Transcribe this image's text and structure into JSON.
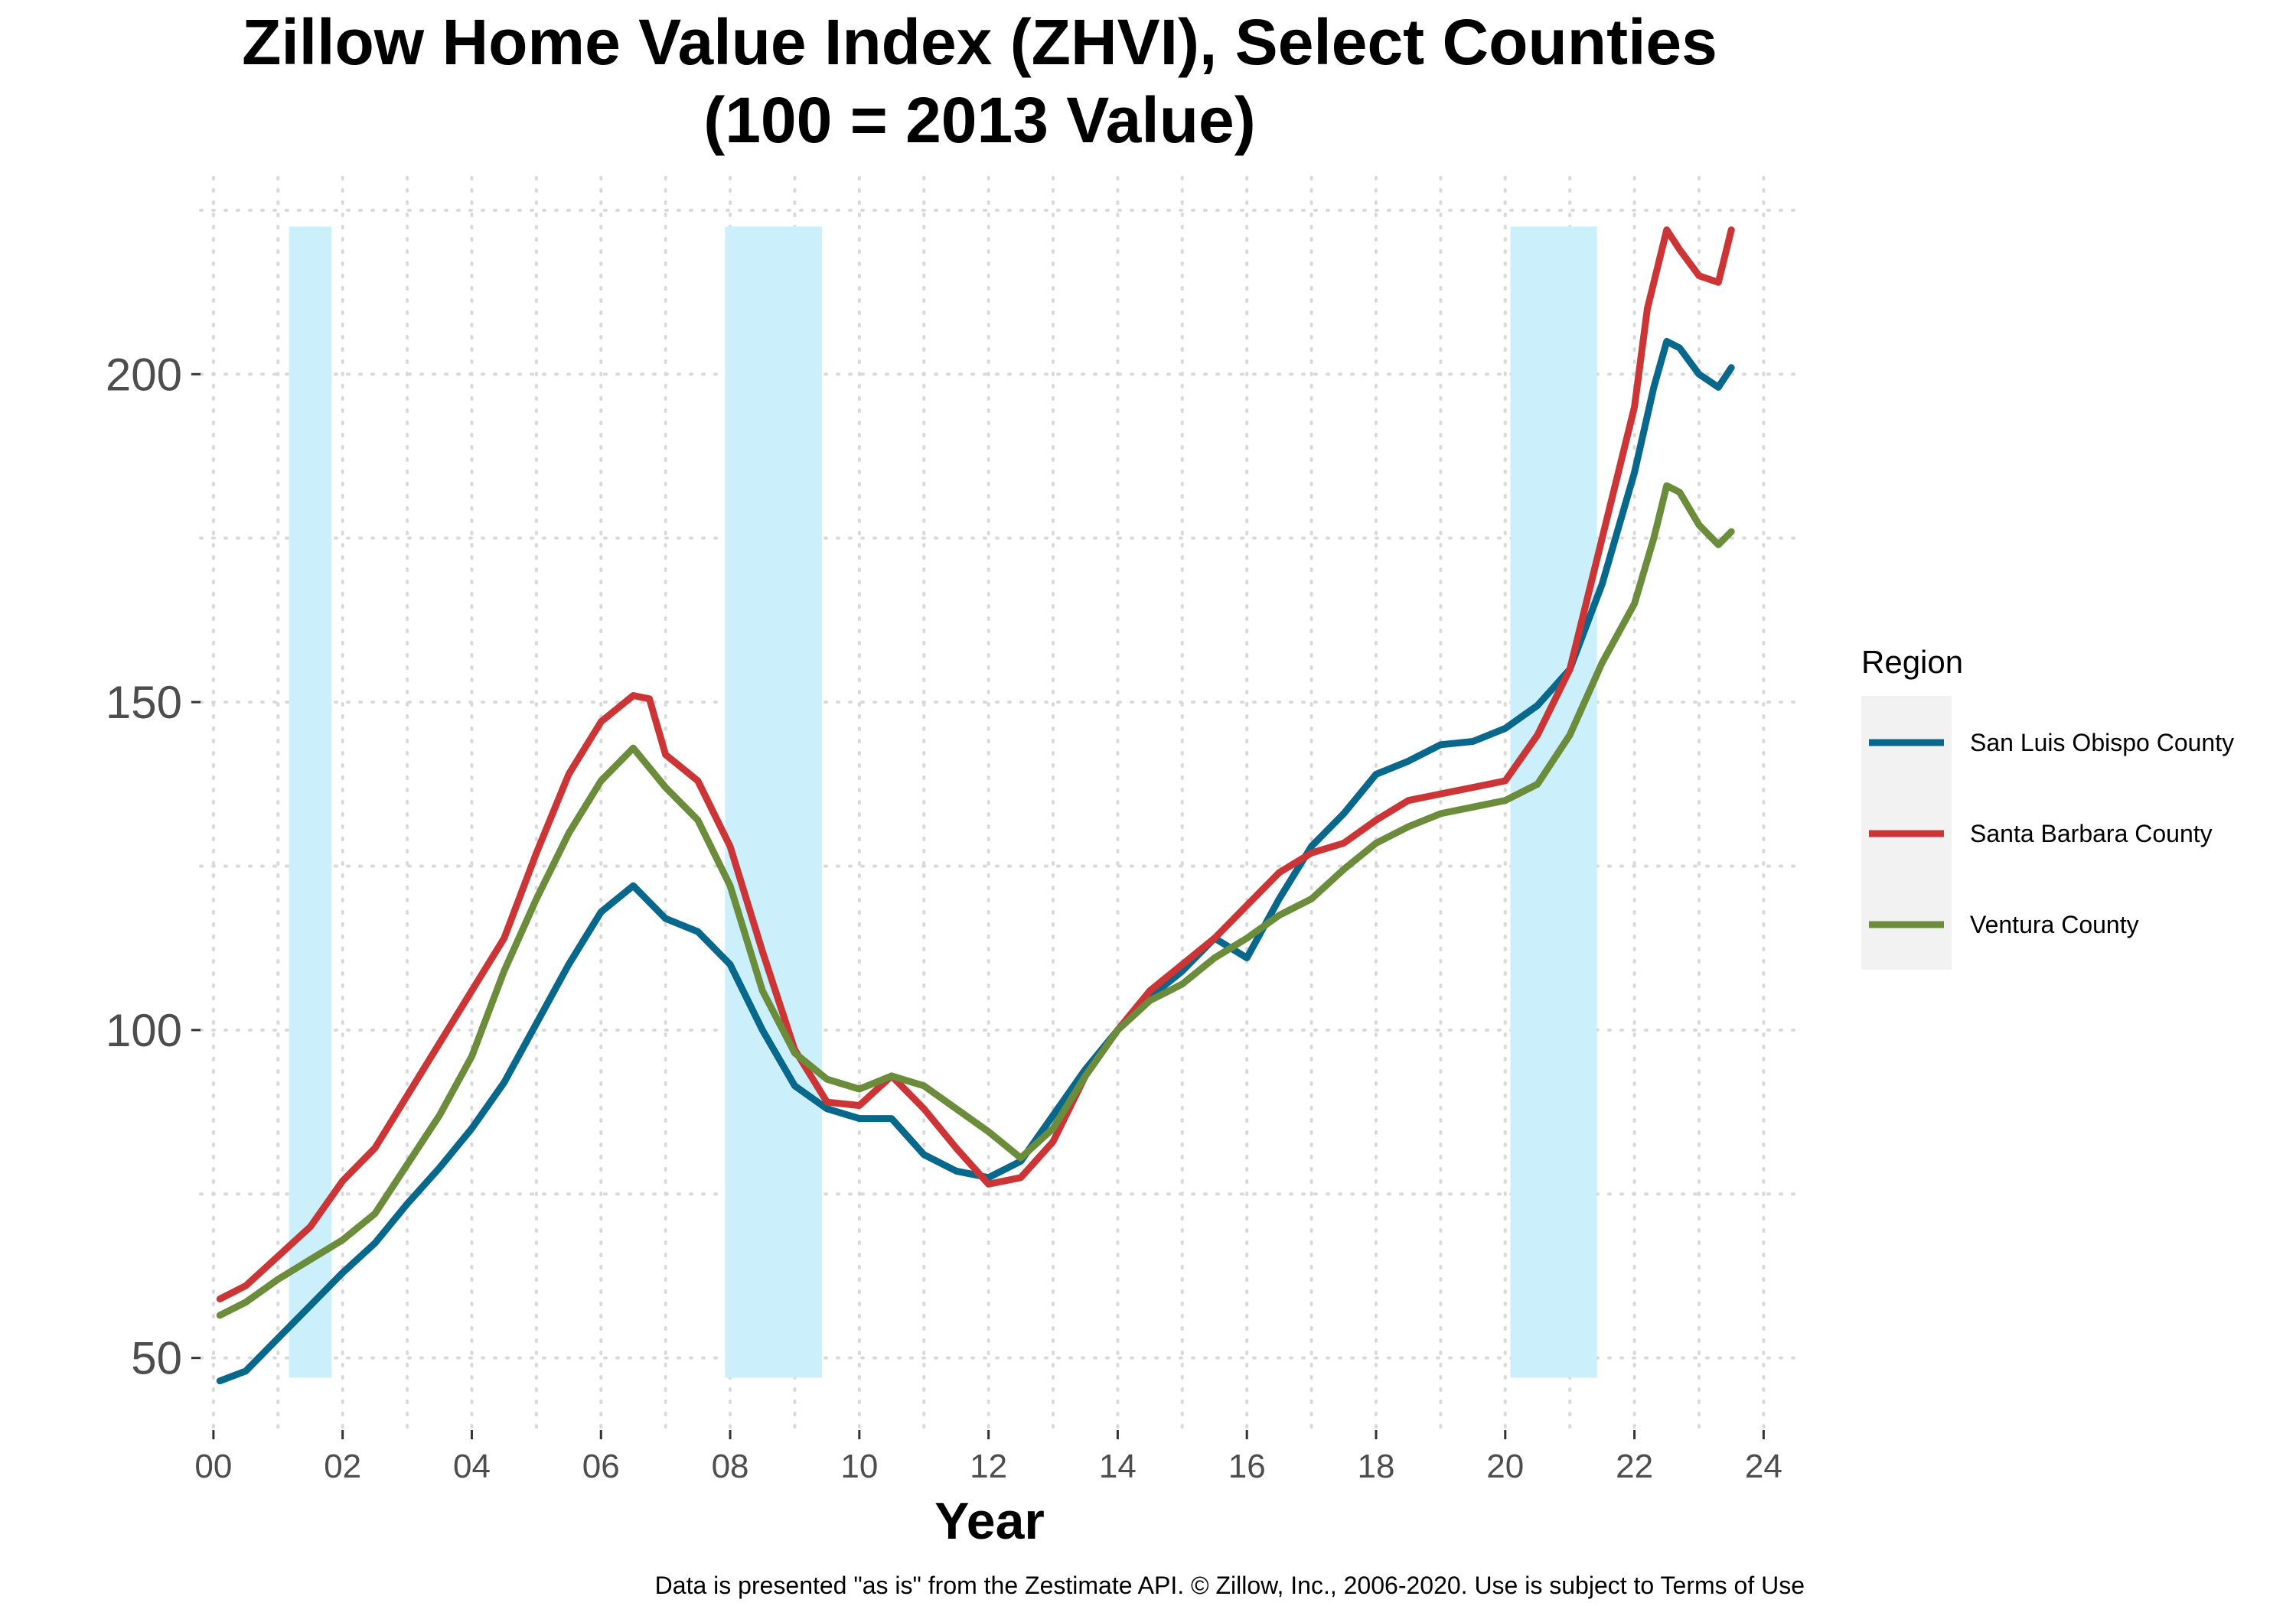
{
  "chart_data": {
    "type": "line",
    "title": "Zillow Home Value Index (ZHVI), Select Counties",
    "subtitle": "(100 = 2013 Value)",
    "xlabel": "Year",
    "ylabel": "",
    "caption": "Data is presented \"as is\" from the Zestimate API. © Zillow, Inc., 2006-2020. Use is subject to Terms of Use",
    "xlim": [
      -0.2,
      24.6
    ],
    "ylim": [
      39,
      230
    ],
    "x_ticks": [
      0,
      2,
      4,
      6,
      8,
      10,
      12,
      14,
      16,
      18,
      20,
      22,
      24
    ],
    "x_tick_labels": [
      "00",
      "02",
      "04",
      "06",
      "08",
      "10",
      "12",
      "14",
      "16",
      "18",
      "20",
      "22",
      "24"
    ],
    "y_ticks": [
      50,
      100,
      150,
      200
    ],
    "y_tick_labels": [
      "50",
      "100",
      "150",
      "200"
    ],
    "grid": "dotted",
    "legend_placement": "right",
    "legend_title": "Region",
    "shaded_periods": [
      {
        "x0": 1.17,
        "x1": 1.83,
        "y0": 47,
        "y1": 222.5
      },
      {
        "x0": 7.92,
        "x1": 9.42,
        "y0": 47,
        "y1": 222.5
      },
      {
        "x0": 20.08,
        "x1": 21.42,
        "y0": 47,
        "y1": 222.5
      }
    ],
    "shade_color": "#cceffc",
    "series": [
      {
        "name": "San Luis Obispo County",
        "color": "#08688c",
        "points": [
          [
            0.1,
            46.5
          ],
          [
            0.5,
            48
          ],
          [
            1,
            53
          ],
          [
            1.5,
            58
          ],
          [
            2,
            63
          ],
          [
            2.5,
            67.5
          ],
          [
            3,
            73.5
          ],
          [
            3.5,
            79
          ],
          [
            4,
            85
          ],
          [
            4.5,
            92
          ],
          [
            5,
            101
          ],
          [
            5.5,
            110
          ],
          [
            6,
            118
          ],
          [
            6.5,
            122
          ],
          [
            7,
            117
          ],
          [
            7.5,
            115
          ],
          [
            8,
            110
          ],
          [
            8.5,
            100
          ],
          [
            9,
            91.5
          ],
          [
            9.5,
            88
          ],
          [
            10,
            86.5
          ],
          [
            10.5,
            86.5
          ],
          [
            11,
            81
          ],
          [
            11.5,
            78.5
          ],
          [
            12,
            77.5
          ],
          [
            12.5,
            80
          ],
          [
            13,
            87
          ],
          [
            13.5,
            94
          ],
          [
            14,
            100
          ],
          [
            14.5,
            105
          ],
          [
            15,
            109
          ],
          [
            15.5,
            114
          ],
          [
            16,
            111
          ],
          [
            16.5,
            120
          ],
          [
            17,
            128
          ],
          [
            17.5,
            133
          ],
          [
            18,
            139
          ],
          [
            18.5,
            141
          ],
          [
            19,
            143.5
          ],
          [
            19.5,
            144
          ],
          [
            20,
            146
          ],
          [
            20.5,
            149.5
          ],
          [
            21,
            155
          ],
          [
            21.5,
            168
          ],
          [
            22,
            185
          ],
          [
            22.3,
            198
          ],
          [
            22.5,
            205
          ],
          [
            22.7,
            204
          ],
          [
            23,
            200
          ],
          [
            23.3,
            198
          ],
          [
            23.5,
            201
          ]
        ]
      },
      {
        "name": "Santa Barbara County",
        "color": "#cc3535",
        "points": [
          [
            0.1,
            59
          ],
          [
            0.5,
            61
          ],
          [
            1,
            65.5
          ],
          [
            1.5,
            70
          ],
          [
            2,
            77
          ],
          [
            2.5,
            82
          ],
          [
            3,
            90
          ],
          [
            3.5,
            98
          ],
          [
            4,
            106
          ],
          [
            4.5,
            114
          ],
          [
            5,
            127
          ],
          [
            5.5,
            139
          ],
          [
            6,
            147
          ],
          [
            6.5,
            151
          ],
          [
            6.75,
            150.5
          ],
          [
            7,
            142
          ],
          [
            7.5,
            138
          ],
          [
            8,
            128
          ],
          [
            8.5,
            112
          ],
          [
            9,
            97
          ],
          [
            9.5,
            89
          ],
          [
            10,
            88.5
          ],
          [
            10.5,
            93
          ],
          [
            11,
            88
          ],
          [
            11.5,
            82
          ],
          [
            12,
            76.5
          ],
          [
            12.5,
            77.5
          ],
          [
            13,
            83
          ],
          [
            13.5,
            93
          ],
          [
            14,
            100
          ],
          [
            14.5,
            106
          ],
          [
            15,
            110
          ],
          [
            15.5,
            114
          ],
          [
            16,
            119
          ],
          [
            16.5,
            124
          ],
          [
            17,
            127
          ],
          [
            17.5,
            128.5
          ],
          [
            18,
            132
          ],
          [
            18.5,
            135
          ],
          [
            19,
            136
          ],
          [
            19.5,
            137
          ],
          [
            20,
            138
          ],
          [
            20.5,
            145
          ],
          [
            21,
            155
          ],
          [
            21.5,
            175
          ],
          [
            22,
            195
          ],
          [
            22.2,
            210
          ],
          [
            22.5,
            222
          ],
          [
            22.7,
            219
          ],
          [
            23,
            215
          ],
          [
            23.3,
            214
          ],
          [
            23.5,
            222
          ]
        ]
      },
      {
        "name": "Ventura County",
        "color": "#6b8c3a",
        "points": [
          [
            0.1,
            56.5
          ],
          [
            0.5,
            58.5
          ],
          [
            1,
            62
          ],
          [
            1.5,
            65
          ],
          [
            2,
            68
          ],
          [
            2.5,
            72
          ],
          [
            3,
            79.5
          ],
          [
            3.5,
            87
          ],
          [
            4,
            96
          ],
          [
            4.5,
            109
          ],
          [
            5,
            120
          ],
          [
            5.5,
            130
          ],
          [
            6,
            138
          ],
          [
            6.5,
            143
          ],
          [
            7,
            137
          ],
          [
            7.5,
            132
          ],
          [
            8,
            122
          ],
          [
            8.5,
            106
          ],
          [
            9,
            96.5
          ],
          [
            9.5,
            92.5
          ],
          [
            10,
            91
          ],
          [
            10.5,
            93
          ],
          [
            11,
            91.5
          ],
          [
            11.5,
            88
          ],
          [
            12,
            84.5
          ],
          [
            12.5,
            80.5
          ],
          [
            13,
            85
          ],
          [
            13.5,
            93
          ],
          [
            14,
            100
          ],
          [
            14.5,
            104.5
          ],
          [
            15,
            107
          ],
          [
            15.5,
            111
          ],
          [
            16,
            114
          ],
          [
            16.5,
            117.5
          ],
          [
            17,
            120
          ],
          [
            17.5,
            124.5
          ],
          [
            18,
            128.5
          ],
          [
            18.5,
            131
          ],
          [
            19,
            133
          ],
          [
            19.5,
            134
          ],
          [
            20,
            135
          ],
          [
            20.5,
            137.5
          ],
          [
            21,
            145
          ],
          [
            21.5,
            156
          ],
          [
            22,
            165
          ],
          [
            22.3,
            175
          ],
          [
            22.5,
            183
          ],
          [
            22.7,
            182
          ],
          [
            23,
            177
          ],
          [
            23.3,
            174
          ],
          [
            23.5,
            176
          ]
        ]
      }
    ]
  }
}
